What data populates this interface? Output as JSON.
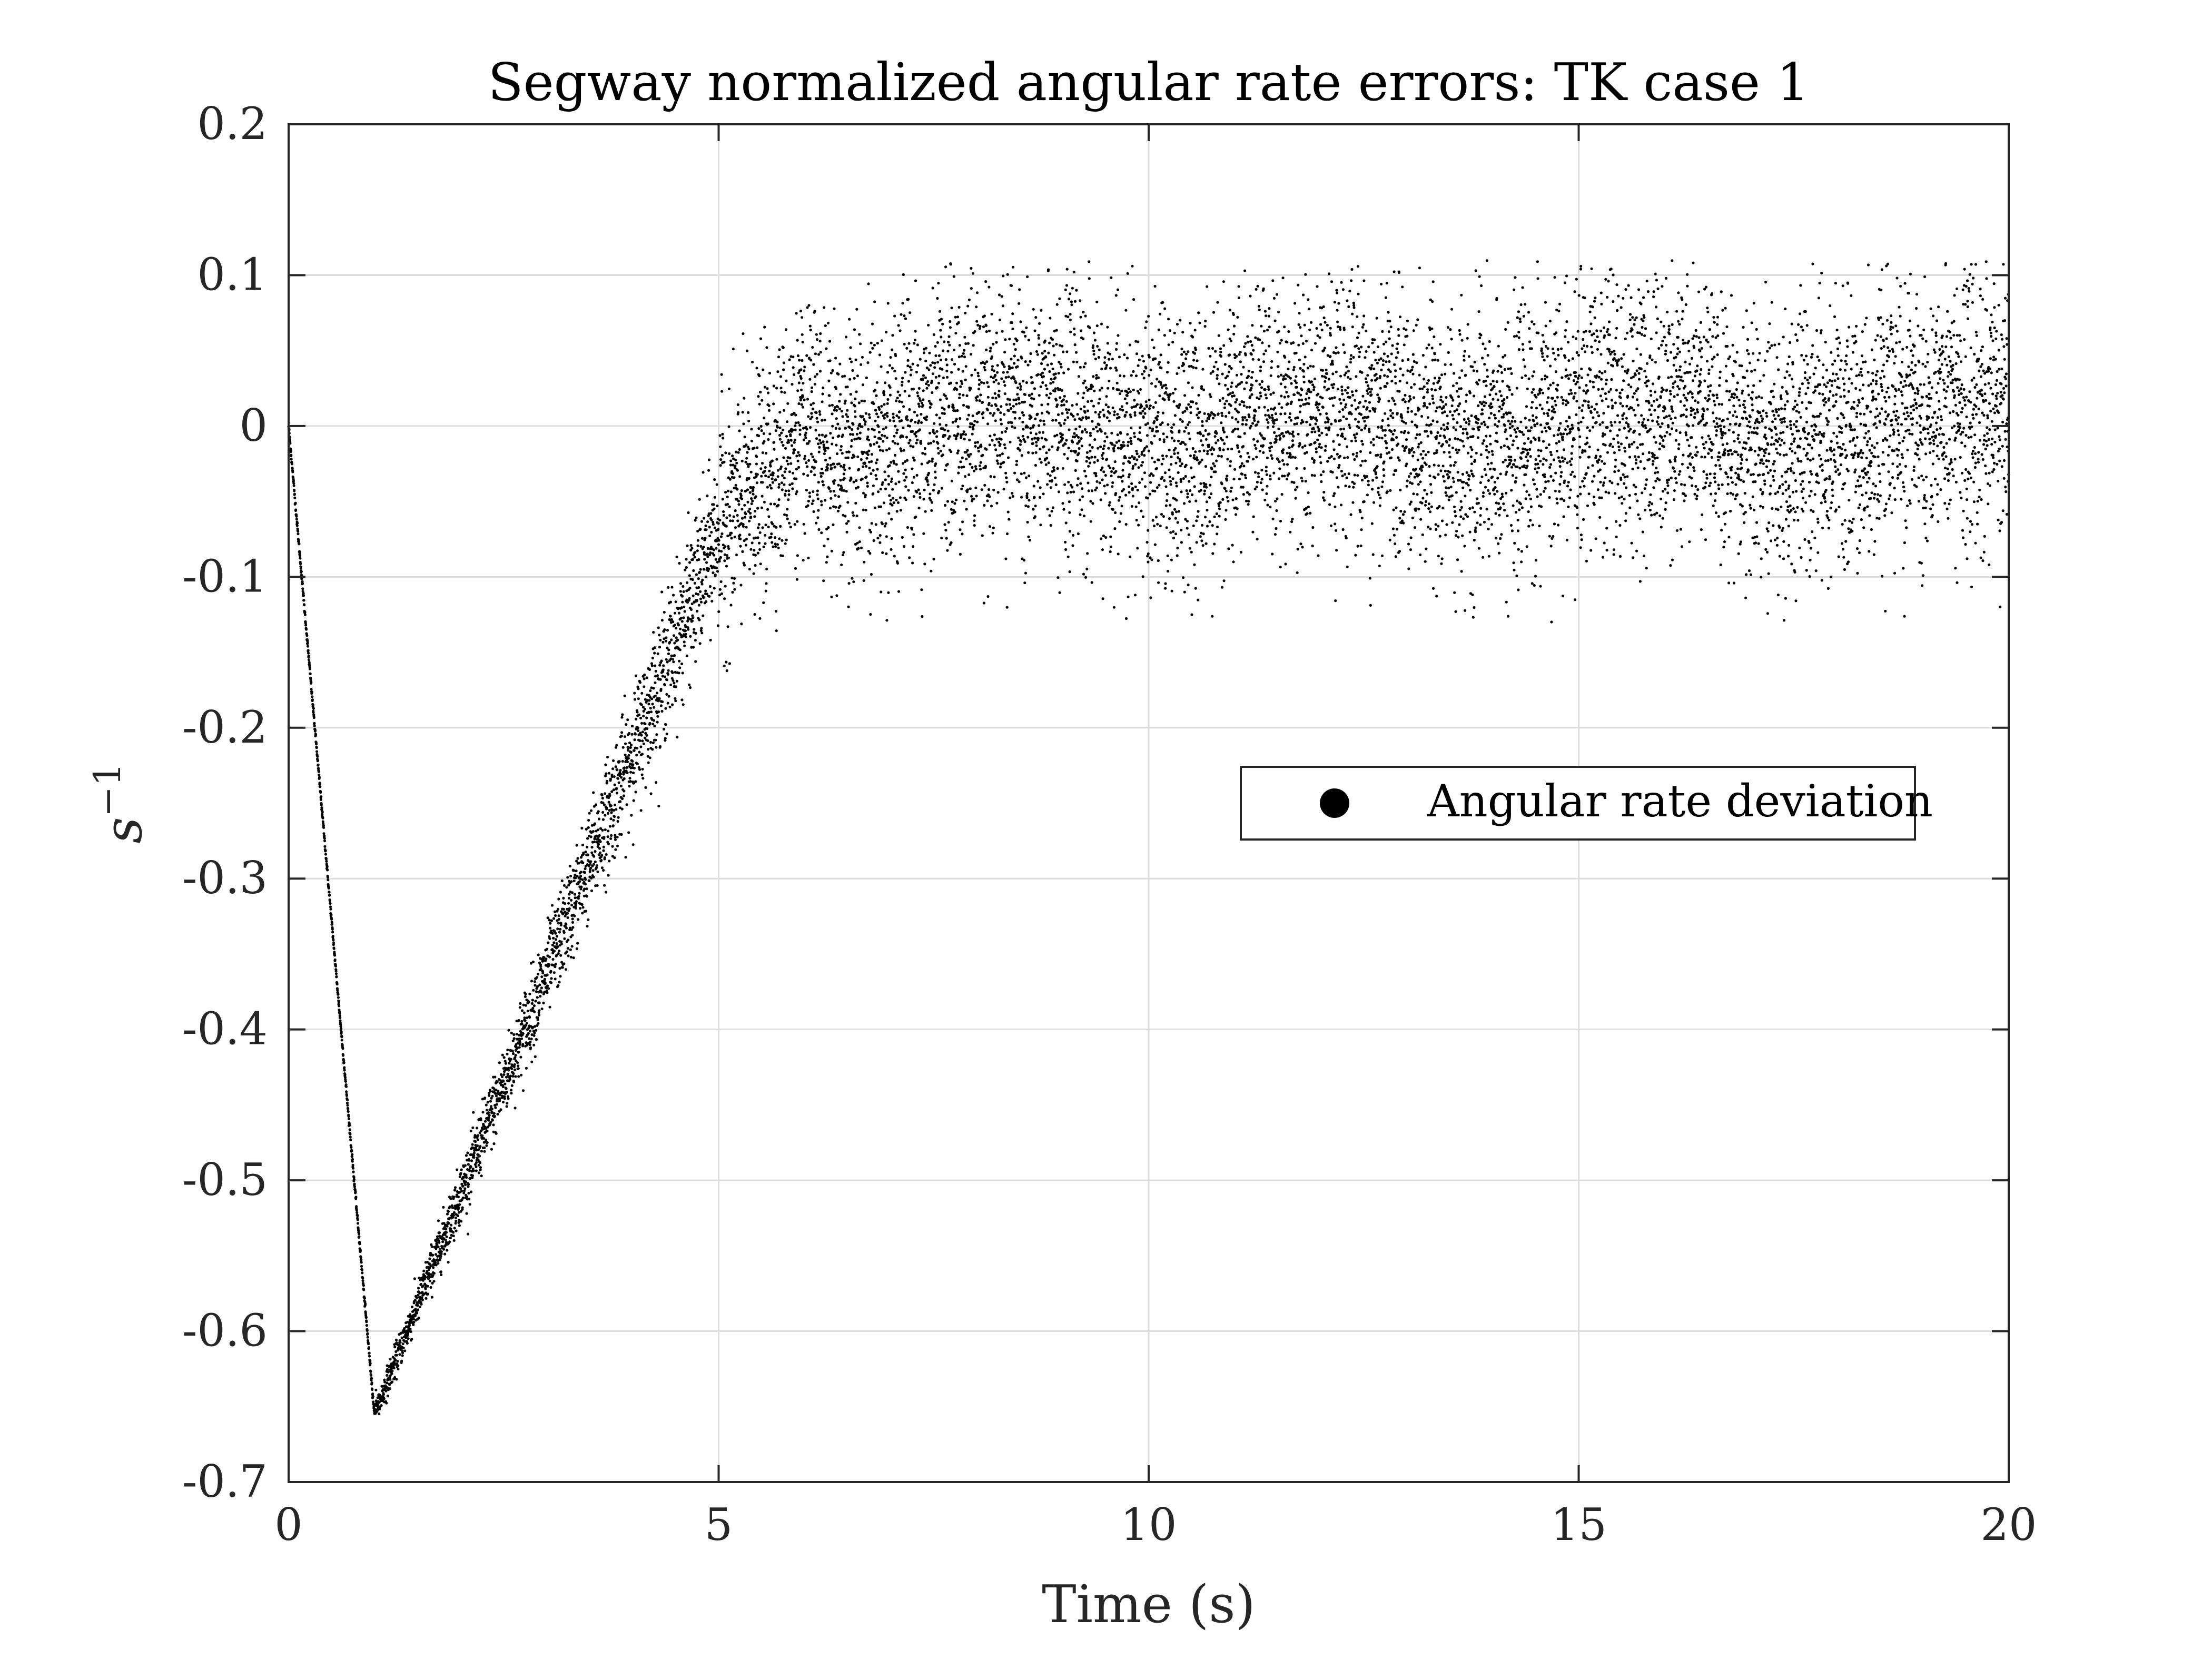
{
  "chart_data": {
    "type": "scatter",
    "title": "Segway normalized angular rate errors: TK case 1",
    "xlabel": "Time (s)",
    "ylabel_base": "s",
    "ylabel_exponent": "−1",
    "xlim": [
      0,
      20
    ],
    "ylim": [
      -0.7,
      0.2
    ],
    "x_ticks": [
      0,
      5,
      10,
      15,
      20
    ],
    "x_tick_labels": [
      "0",
      "5",
      "10",
      "15",
      "20"
    ],
    "y_ticks": [
      0.2,
      0.1,
      0,
      -0.1,
      -0.2,
      -0.3,
      -0.4,
      -0.5,
      -0.6,
      -0.7
    ],
    "y_tick_labels": [
      "0.2",
      "0.1",
      "0",
      "-0.1",
      "-0.2",
      "-0.3",
      "-0.4",
      "-0.5",
      "-0.6",
      "-0.7"
    ],
    "grid": true,
    "legend_position": "middle-right",
    "colors": {
      "marker": "#000000",
      "grid": "#dcdcdc",
      "axes": "#262626"
    },
    "series": [
      {
        "name": "Angular rate deviation",
        "marker": "dot",
        "segments": [
          {
            "x_start": 0,
            "x_end": 1.0,
            "y_start": 0,
            "y_end": -0.655,
            "spread": 0.003
          },
          {
            "x_start": 1.0,
            "x_end": 5.0,
            "y_start": -0.655,
            "y_end": -0.07,
            "spread_start": 0.01,
            "spread_end": 0.06
          },
          {
            "x_start": 5.0,
            "x_end": 6.0,
            "y_start": -0.07,
            "y_end": 0.0,
            "spread": 0.09
          },
          {
            "x_start": 6.0,
            "x_end": 20.0,
            "y_start": 0.0,
            "y_end": 0.0,
            "spread": 0.11
          }
        ],
        "y_min": -0.655,
        "y_max": 0.135,
        "steady_state_band": [
          -0.13,
          0.11
        ]
      }
    ]
  }
}
